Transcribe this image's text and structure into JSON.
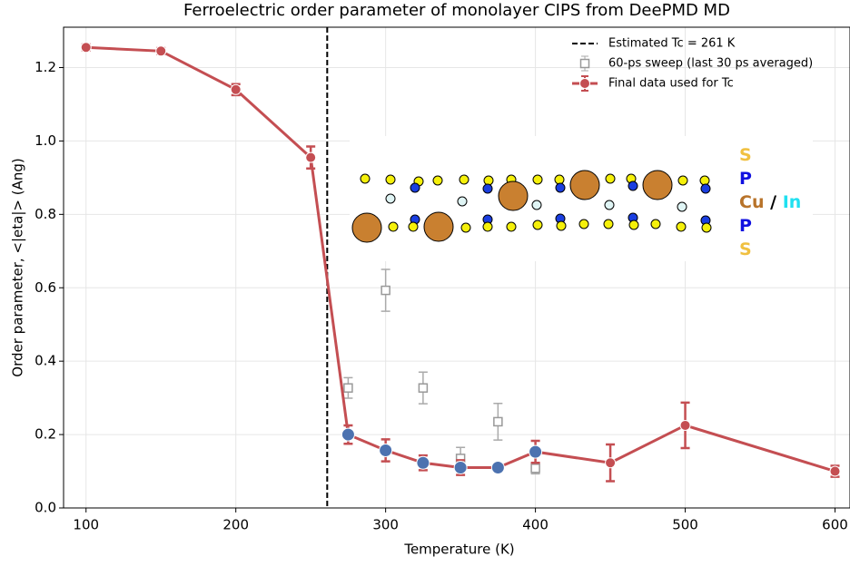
{
  "chart_data": {
    "type": "line",
    "title": "Ferroelectric order parameter of monolayer CIPS from DeePMD MD",
    "x_label": "Temperature (K)",
    "y_label": "Order parameter, <|eta|> (Ang)",
    "xlim": [
      85,
      610
    ],
    "xticks": [
      100,
      200,
      300,
      400,
      500,
      600
    ],
    "ylim": [
      0,
      1.31
    ],
    "yticks": [
      {
        "value": 0,
        "label": "0.0"
      },
      0.2,
      0.4,
      0.6,
      0.8,
      {
        "value": 1,
        "label": "1.0"
      },
      1.2
    ],
    "grid": true,
    "legend": "upper right",
    "vline": {
      "x": 261,
      "name": "Estimated Tc = 261 K",
      "color": "#000000"
    },
    "series": [
      {
        "name": "60-ps sweep (last 30 ps averaged)",
        "color": "#999999",
        "marker": "square",
        "x": [
          275,
          300,
          325,
          350,
          375,
          400
        ],
        "values": [
          0.327,
          0.593,
          0.327,
          0.135,
          0.235,
          0.108
        ],
        "errors": [
          0.028,
          0.057,
          0.043,
          0.03,
          0.05,
          0.015
        ]
      },
      {
        "name": "Final data used for Tc",
        "color": "#c44e52",
        "marker": "circle",
        "x": [
          100,
          150,
          200,
          250,
          275,
          300,
          325,
          350,
          375,
          400,
          450,
          500,
          600
        ],
        "values": [
          1.255,
          1.245,
          1.14,
          0.955,
          0.2,
          0.157,
          0.123,
          0.11,
          0.11,
          0.153,
          0.123,
          0.225,
          0.1
        ],
        "errors": [
          0.008,
          0.008,
          0.015,
          0.03,
          0.025,
          0.03,
          0.02,
          0.02,
          0.01,
          0.03,
          0.05,
          0.062,
          0.015
        ],
        "marker_colors": [
          "#c44e52",
          "#c44e52",
          "#c44e52",
          "#c44e52",
          "#4c72b0",
          "#4c72b0",
          "#4c72b0",
          "#4c72b0",
          "#4c72b0",
          "#4c72b0",
          "#c44e52",
          "#c44e52",
          "#c44e52"
        ]
      }
    ],
    "inset": {
      "labels": [
        [
          {
            "text": "S",
            "color": "#f0c040"
          }
        ],
        [
          {
            "text": "P",
            "color": "#1010e0"
          }
        ],
        [
          {
            "text": "Cu",
            "color": "#b8732a"
          },
          {
            "text": "/",
            "color": "#000000"
          },
          {
            "text": "In",
            "color": "#20e0f0"
          }
        ],
        [
          {
            "text": "P",
            "color": "#1010e0"
          }
        ],
        [
          {
            "text": "S",
            "color": "#f0c040"
          }
        ]
      ]
    }
  }
}
